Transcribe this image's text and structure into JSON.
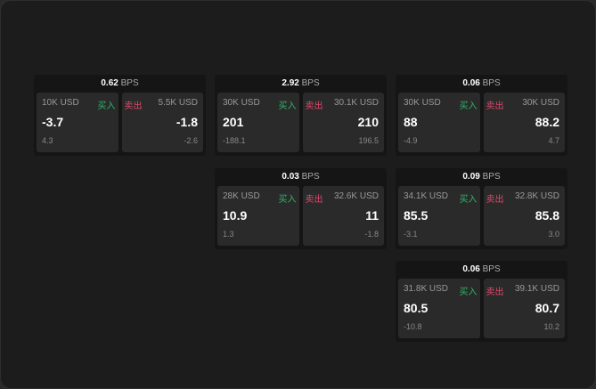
{
  "labels": {
    "buy": "买入",
    "sell": "卖出",
    "unit": "BPS"
  },
  "colors": {
    "buy": "#2fb36a",
    "sell": "#e0486c"
  },
  "cards": [
    {
      "spread": "0.62",
      "bid_qty": "10K USD",
      "bid": "-3.7",
      "bid_chg": "4.3",
      "ask_qty": "5.5K USD",
      "ask": "-1.8",
      "ask_chg": "-2.6"
    },
    {
      "spread": "2.92",
      "bid_qty": "30K USD",
      "bid": "201",
      "bid_chg": "-188.1",
      "ask_qty": "30.1K USD",
      "ask": "210",
      "ask_chg": "196.5"
    },
    {
      "spread": "0.06",
      "bid_qty": "30K USD",
      "bid": "88",
      "bid_chg": "-4.9",
      "ask_qty": "30K USD",
      "ask": "88.2",
      "ask_chg": "4.7"
    },
    {
      "spread": "0.03",
      "bid_qty": "28K USD",
      "bid": "10.9",
      "bid_chg": "1.3",
      "ask_qty": "32.6K USD",
      "ask": "11",
      "ask_chg": "-1.8"
    },
    {
      "spread": "0.09",
      "bid_qty": "34.1K USD",
      "bid": "85.5",
      "bid_chg": "-3.1",
      "ask_qty": "32.8K USD",
      "ask": "85.8",
      "ask_chg": "3.0"
    },
    {
      "spread": "0.06",
      "bid_qty": "31.8K USD",
      "bid": "80.5",
      "bid_chg": "-10.8",
      "ask_qty": "39.1K USD",
      "ask": "80.7",
      "ask_chg": "10.2"
    }
  ]
}
